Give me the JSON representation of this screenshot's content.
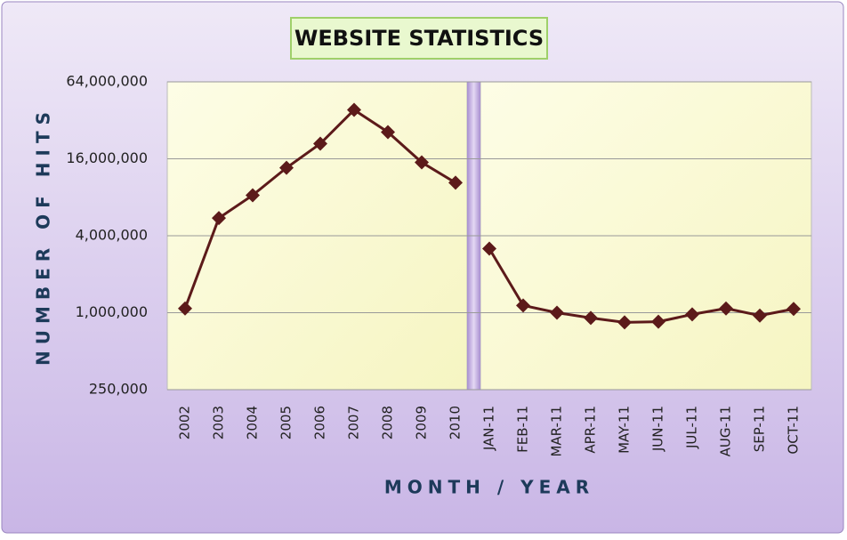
{
  "chart_data": {
    "type": "line",
    "title": "WEBSITE STATISTICS",
    "x_label": "MONTH / YEAR",
    "y_label": "NUMBER OF HITS",
    "categories": [
      "2002",
      "2003",
      "2004",
      "2005",
      "2006",
      "2007",
      "2008",
      "2009",
      "2010",
      "JAN-11",
      "FEB-11",
      "MAR-11",
      "APR-11",
      "MAY-11",
      "JUN-11",
      "JUL-11",
      "AUG-11",
      "SEP-11",
      "OCT-11"
    ],
    "series": [
      {
        "color": "#5c1a1a",
        "values": [
          1080000,
          5500000,
          8300000,
          13600000,
          21000000,
          38600000,
          25900000,
          15000000,
          10400000,
          null,
          null,
          null,
          null,
          null,
          null,
          null,
          null,
          null,
          null
        ]
      },
      {
        "color": "#5c1a1a",
        "values": [
          null,
          null,
          null,
          null,
          null,
          null,
          null,
          null,
          null,
          3170000,
          1140000,
          1000000,
          910000,
          840000,
          850000,
          970000,
          1080000,
          950000,
          1070000
        ]
      }
    ],
    "log_scale": true,
    "grid": true,
    "ylim": [
      250000,
      64000000
    ],
    "yticks": [
      {
        "value": 250000,
        "label": "250,000"
      },
      {
        "value": 1000000,
        "label": "1,000,000"
      },
      {
        "value": 4000000,
        "label": "4,000,000"
      },
      {
        "value": 16000000,
        "label": "16,000,000"
      },
      {
        "value": 64000000,
        "label": "64,000,000"
      }
    ]
  }
}
